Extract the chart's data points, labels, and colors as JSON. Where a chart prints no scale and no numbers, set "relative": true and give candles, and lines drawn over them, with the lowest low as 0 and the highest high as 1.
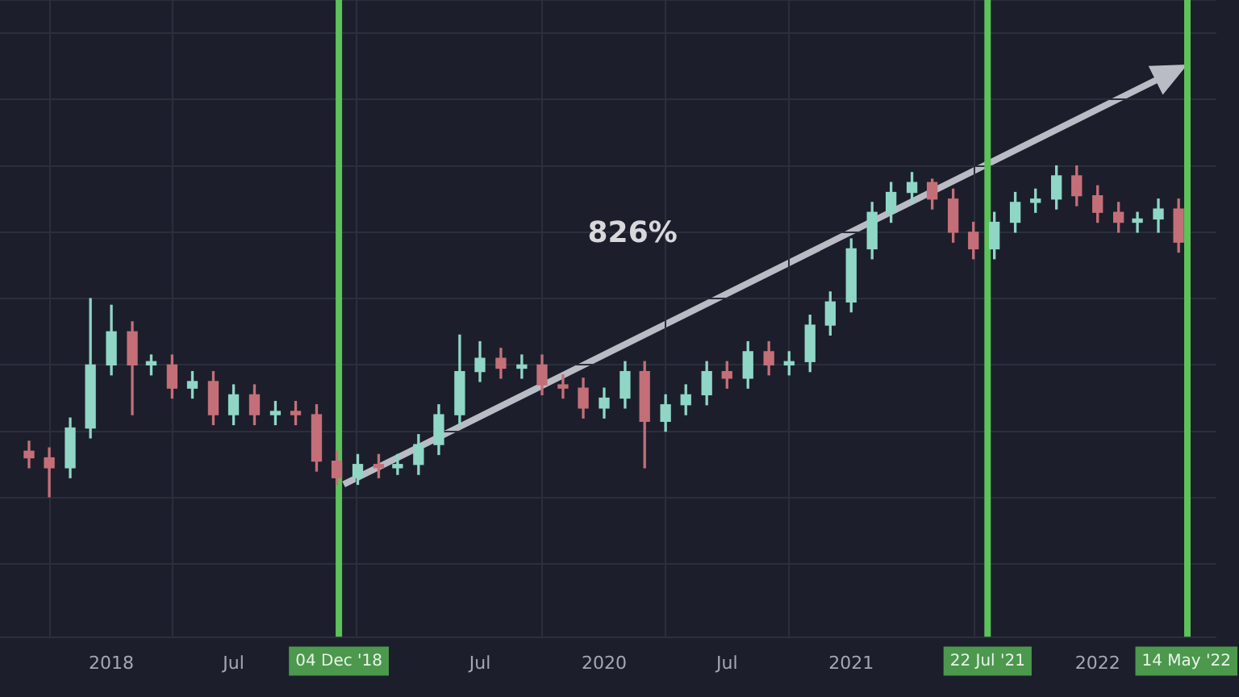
{
  "chart_data": {
    "type": "candlestick",
    "relative": true,
    "x": [
      "2017-09",
      "2017-10",
      "2017-11",
      "2017-12",
      "2018-01",
      "2018-02",
      "2018-03",
      "2018-04",
      "2018-05",
      "2018-06",
      "2018-07",
      "2018-08",
      "2018-09",
      "2018-10",
      "2018-11",
      "2018-12",
      "2019-01",
      "2019-02",
      "2019-03",
      "2019-04",
      "2019-05",
      "2019-06",
      "2019-07",
      "2019-08",
      "2019-09",
      "2019-10",
      "2019-11",
      "2019-12",
      "2020-01",
      "2020-02",
      "2020-03",
      "2020-04",
      "2020-05",
      "2020-06",
      "2020-07",
      "2020-08",
      "2020-09",
      "2020-10",
      "2020-11",
      "2020-12",
      "2021-01",
      "2021-02",
      "2021-03",
      "2021-04",
      "2021-05",
      "2021-06",
      "2021-07",
      "2021-08",
      "2021-09",
      "2021-10",
      "2021-11",
      "2021-12",
      "2022-01",
      "2022-02",
      "2022-03",
      "2022-04",
      "2022-05"
    ],
    "ohlc": [
      [
        0.14,
        0.17,
        0.09,
        0.12
      ],
      [
        0.12,
        0.15,
        0,
        0.09
      ],
      [
        0.09,
        0.24,
        0.06,
        0.21
      ],
      [
        0.21,
        0.6,
        0.18,
        0.4
      ],
      [
        0.4,
        0.58,
        0.37,
        0.5
      ],
      [
        0.5,
        0.53,
        0.25,
        0.4
      ],
      [
        0.4,
        0.43,
        0.37,
        0.41
      ],
      [
        0.4,
        0.43,
        0.3,
        0.33
      ],
      [
        0.33,
        0.38,
        0.3,
        0.35
      ],
      [
        0.35,
        0.38,
        0.22,
        0.25
      ],
      [
        0.25,
        0.34,
        0.22,
        0.31
      ],
      [
        0.31,
        0.34,
        0.22,
        0.25
      ],
      [
        0.25,
        0.29,
        0.22,
        0.26
      ],
      [
        0.26,
        0.29,
        0.22,
        0.25
      ],
      [
        0.25,
        0.28,
        0.08,
        0.11
      ],
      [
        0.11,
        0.14,
        0.04,
        0.06
      ],
      [
        0.06,
        0.13,
        0.04,
        0.1
      ],
      [
        0.1,
        0.13,
        0.06,
        0.09
      ],
      [
        0.09,
        0.13,
        0.07,
        0.1
      ],
      [
        0.1,
        0.19,
        0.07,
        0.16
      ],
      [
        0.16,
        0.28,
        0.13,
        0.25
      ],
      [
        0.25,
        0.49,
        0.22,
        0.38
      ],
      [
        0.38,
        0.47,
        0.35,
        0.42
      ],
      [
        0.42,
        0.45,
        0.36,
        0.39
      ],
      [
        0.39,
        0.43,
        0.36,
        0.4
      ],
      [
        0.4,
        0.43,
        0.31,
        0.34
      ],
      [
        0.34,
        0.37,
        0.3,
        0.33
      ],
      [
        0.33,
        0.36,
        0.24,
        0.27
      ],
      [
        0.27,
        0.33,
        0.24,
        0.3
      ],
      [
        0.3,
        0.41,
        0.27,
        0.38
      ],
      [
        0.38,
        0.41,
        0.09,
        0.23
      ],
      [
        0.23,
        0.31,
        0.2,
        0.28
      ],
      [
        0.28,
        0.34,
        0.25,
        0.31
      ],
      [
        0.31,
        0.41,
        0.28,
        0.38
      ],
      [
        0.38,
        0.41,
        0.33,
        0.36
      ],
      [
        0.36,
        0.47,
        0.33,
        0.44
      ],
      [
        0.44,
        0.47,
        0.37,
        0.4
      ],
      [
        0.4,
        0.44,
        0.37,
        0.41
      ],
      [
        0.41,
        0.55,
        0.38,
        0.52
      ],
      [
        0.52,
        0.62,
        0.49,
        0.59
      ],
      [
        0.59,
        0.78,
        0.56,
        0.75
      ],
      [
        0.75,
        0.89,
        0.72,
        0.86
      ],
      [
        0.86,
        0.95,
        0.83,
        0.92
      ],
      [
        0.92,
        0.98,
        0.89,
        0.95
      ],
      [
        0.95,
        0.96,
        0.87,
        0.9
      ],
      [
        0.9,
        0.93,
        0.77,
        0.8
      ],
      [
        0.8,
        0.83,
        0.72,
        0.75
      ],
      [
        0.75,
        0.86,
        0.72,
        0.83
      ],
      [
        0.83,
        0.92,
        0.8,
        0.89
      ],
      [
        0.89,
        0.93,
        0.86,
        0.9
      ],
      [
        0.9,
        1,
        0.87,
        0.97
      ],
      [
        0.97,
        1,
        0.88,
        0.91
      ],
      [
        0.91,
        0.94,
        0.83,
        0.86
      ],
      [
        0.86,
        0.89,
        0.8,
        0.83
      ],
      [
        0.83,
        0.86,
        0.8,
        0.84
      ],
      [
        0.84,
        0.9,
        0.8,
        0.87
      ],
      [
        0.87,
        0.9,
        0.74,
        0.77
      ]
    ],
    "colors": [
      "#c46f78",
      "#c46f78",
      "#8fd6c6",
      "#8fd6c6",
      "#8fd6c6",
      "#c46f78",
      "#8fd6c6",
      "#c46f78",
      "#8fd6c6",
      "#c46f78",
      "#8fd6c6",
      "#c46f78",
      "#8fd6c6",
      "#c46f78",
      "#c46f78",
      "#c46f78",
      "#8fd6c6",
      "#c46f78",
      "#8fd6c6",
      "#8fd6c6",
      "#8fd6c6",
      "#8fd6c6",
      "#8fd6c6",
      "#c46f78",
      "#8fd6c6",
      "#c46f78",
      "#c46f78",
      "#c46f78",
      "#8fd6c6",
      "#8fd6c6",
      "#c46f78",
      "#8fd6c6",
      "#8fd6c6",
      "#8fd6c6",
      "#c46f78",
      "#8fd6c6",
      "#c46f78",
      "#8fd6c6",
      "#8fd6c6",
      "#8fd6c6",
      "#8fd6c6",
      "#8fd6c6",
      "#8fd6c6",
      "#8fd6c6",
      "#c46f78",
      "#c46f78",
      "#c46f78",
      "#8fd6c6",
      "#8fd6c6",
      "#8fd6c6",
      "#8fd6c6",
      "#c46f78",
      "#c46f78",
      "#c46f78",
      "#8fd6c6",
      "#8fd6c6",
      "#c46f78"
    ],
    "xlim": [
      "2017-07-20",
      "2022-06-26"
    ],
    "xticks": [
      {
        "value": "2018-01-01",
        "label": "2018"
      },
      {
        "value": "2018-07-01",
        "label": "Jul"
      },
      {
        "value": "2019-07-01",
        "label": "Jul"
      },
      {
        "value": "2020-01-01",
        "label": "2020"
      },
      {
        "value": "2020-07-01",
        "label": "Jul"
      },
      {
        "value": "2021-01-01",
        "label": "2021"
      },
      {
        "value": "2022-01-01",
        "label": "2022"
      }
    ],
    "ref_lines": [
      {
        "axis": "x",
        "value": "2018-12-04",
        "label": "04 Dec '18",
        "color": "#5cc25a"
      },
      {
        "axis": "x",
        "value": "2021-07-22",
        "label": "22 Jul '21",
        "color": "#5cc25a"
      },
      {
        "axis": "x",
        "value": "2022-05-14",
        "label": "14 May '22",
        "color": "#5cc25a"
      }
    ],
    "annotations": [
      "826%"
    ],
    "grid": true,
    "legend": false
  }
}
